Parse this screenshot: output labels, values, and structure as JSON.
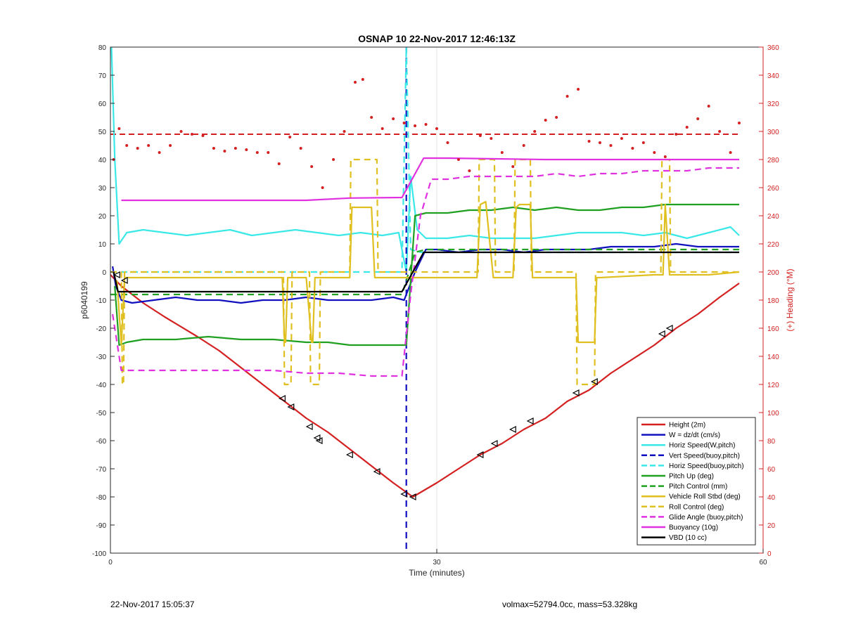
{
  "chart_data": {
    "type": "line",
    "title": "OSNAP 10 22-Nov-2017 12:46:13Z",
    "xlabel": "Time (minutes)",
    "ylabel": "p6040199",
    "y2label": "(+) Heading (°M)",
    "xlim": [
      0,
      60
    ],
    "ylim": [
      -100,
      80
    ],
    "y2lim": [
      0,
      360
    ],
    "xticks": [
      0,
      30,
      60
    ],
    "yticks": [
      -100,
      -90,
      -80,
      -70,
      -60,
      -50,
      -40,
      -30,
      -20,
      -10,
      0,
      10,
      20,
      30,
      40,
      50,
      60,
      70,
      80
    ],
    "y2ticks": [
      0,
      20,
      40,
      60,
      80,
      100,
      120,
      140,
      160,
      180,
      200,
      220,
      240,
      260,
      280,
      300,
      320,
      340,
      360
    ],
    "grid": true,
    "legend_position": "bottom-right",
    "colors": {
      "red": "#d42020",
      "blue": "#1010c0",
      "cyan": "#3ae8e8",
      "green": "#20a020",
      "yellow": "#e0c020",
      "magenta": "#e030e0",
      "black": "#000000",
      "right_axis": "#d42020"
    },
    "series": [
      {
        "name": "Height (2m)",
        "color": "red",
        "style": "solid",
        "x": [
          0,
          1,
          3,
          5,
          8,
          10,
          12,
          14,
          16,
          18,
          20,
          22,
          24,
          26,
          27.8,
          30,
          32,
          34,
          36,
          38,
          40,
          42,
          44,
          46,
          48,
          50,
          52,
          54,
          56,
          57.8
        ],
        "y": [
          -1,
          -5,
          -11,
          -16,
          -23,
          -28,
          -34,
          -40,
          -46,
          -52,
          -57,
          -63,
          -69,
          -75,
          -80,
          -75,
          -70,
          -65,
          -61,
          -56,
          -52,
          -46,
          -42,
          -36,
          -31,
          -26,
          -20,
          -15,
          -9,
          -4
        ]
      },
      {
        "name": "W = dz/dt (cm/s)",
        "color": "blue",
        "style": "solid",
        "x": [
          0.2,
          0.5,
          1,
          2,
          4,
          6,
          8,
          10,
          12,
          14,
          16,
          18,
          20,
          22,
          24,
          26,
          27,
          28,
          29,
          30,
          32,
          34,
          36,
          38,
          40,
          42,
          44,
          46,
          48,
          50,
          52,
          54,
          56,
          57.8
        ],
        "y": [
          2,
          -5,
          -10,
          -11,
          -10,
          -9,
          -10,
          -10,
          -11,
          -10,
          -10,
          -9,
          -10,
          -10,
          -10,
          -9,
          -10,
          0,
          8,
          8,
          7,
          8,
          8,
          7,
          8,
          8,
          8,
          9,
          9,
          9,
          10,
          9,
          9,
          9
        ]
      },
      {
        "name": "Horiz Speed(W,pitch)",
        "color": "cyan",
        "style": "solid",
        "x": [
          0.1,
          0.4,
          0.8,
          1.5,
          3,
          5,
          7,
          9,
          11,
          13,
          15,
          17,
          19,
          21,
          23,
          25,
          26.5,
          27.2,
          27.6,
          28.2,
          29,
          31,
          33,
          35,
          37,
          39,
          41,
          43,
          45,
          47,
          49,
          51,
          53,
          55,
          57,
          57.8
        ],
        "y": [
          80,
          40,
          10,
          14,
          15,
          14,
          13,
          14,
          15,
          13,
          14,
          15,
          14,
          13,
          14,
          13,
          14,
          0,
          34,
          15,
          12,
          12,
          13,
          12,
          12,
          12,
          13,
          14,
          14,
          14,
          13,
          14,
          12,
          14,
          16,
          13
        ]
      },
      {
        "name": "Vert Speed(buoy,pitch)",
        "color": "blue",
        "style": "dashed",
        "x": [
          27.2,
          27.2
        ],
        "y": [
          80,
          -100
        ]
      },
      {
        "name": "Horiz Speed(buoy,pitch)",
        "color": "cyan",
        "style": "dashed",
        "x": [
          0,
          26.8,
          27.2,
          27.6,
          28.5,
          57.8
        ],
        "y": [
          0,
          0,
          80,
          8,
          7,
          7
        ]
      },
      {
        "name": "Pitch Up (deg)",
        "color": "green",
        "style": "solid",
        "x": [
          0.4,
          0.8,
          1.5,
          3,
          6,
          9,
          12,
          15,
          18,
          20,
          22,
          24,
          26,
          27.2,
          28,
          29,
          31,
          33,
          35,
          37,
          39,
          41,
          43,
          45,
          47,
          49,
          51,
          53,
          55,
          57,
          57.8
        ],
        "y": [
          -5,
          -26,
          -25,
          -24,
          -24,
          -23,
          -24,
          -24,
          -25,
          -25,
          -26,
          -26,
          -26,
          -26,
          20,
          21,
          21,
          22,
          22,
          23,
          22,
          23,
          22,
          22,
          23,
          23,
          24,
          24,
          24,
          24,
          24
        ]
      },
      {
        "name": "Pitch Control (mm)",
        "color": "green",
        "style": "dashed",
        "x": [
          0,
          1,
          26.8,
          28,
          29,
          57.8
        ],
        "y": [
          -8,
          -8,
          -8,
          7,
          8,
          8
        ]
      },
      {
        "name": "Vehicle Roll Stbd (deg)",
        "color": "yellow",
        "style": "solid",
        "x": [
          0.6,
          1,
          1.3,
          4,
          8,
          12,
          15.8,
          16,
          16.1,
          16.3,
          16.6,
          18,
          18.5,
          18.6,
          18.8,
          19,
          20,
          22,
          22.2,
          22.4,
          24,
          24.3,
          24.5,
          26.5,
          27.3,
          28,
          30,
          33.7,
          34,
          34.5,
          35.2,
          35.5,
          37,
          37.3,
          37.6,
          38.6,
          38.8,
          39,
          42.8,
          43,
          43.3,
          44.5,
          44.7,
          45,
          50,
          50.8,
          51,
          51.4,
          55,
          57.8
        ],
        "y": [
          -3,
          -26,
          -2,
          -2,
          -2,
          -2,
          -2,
          -25,
          -25,
          -2,
          -2,
          -2,
          -25,
          -25,
          -2,
          -2,
          -2,
          -2,
          23,
          23,
          23,
          -2,
          -2,
          -2,
          -2,
          -2,
          -2,
          -2,
          24,
          25,
          -2,
          -2,
          -2,
          23,
          24,
          24,
          -2,
          -2,
          -2,
          -25,
          -25,
          -25,
          -2,
          -2,
          -1,
          -1,
          24,
          -1,
          -1,
          0
        ]
      },
      {
        "name": "Roll Control (deg)",
        "color": "yellow",
        "style": "dashed",
        "x": [
          0,
          1,
          1.1,
          1.2,
          1.3,
          15.9,
          16,
          16.6,
          16.7,
          18.3,
          18.4,
          19.2,
          19.3,
          22,
          22.1,
          24.5,
          24.6,
          33.8,
          33.9,
          35.3,
          35.4,
          37.1,
          37.2,
          38.6,
          38.7,
          42.8,
          42.9,
          44.5,
          44.6,
          50.6,
          50.7,
          51.4,
          51.5,
          57.8
        ],
        "y": [
          0,
          0,
          -40,
          -40,
          0,
          0,
          -40,
          -40,
          0,
          0,
          -40,
          -40,
          0,
          0,
          40,
          40,
          0,
          0,
          40,
          40,
          0,
          0,
          40,
          40,
          0,
          0,
          -40,
          -40,
          0,
          0,
          40,
          40,
          0,
          0
        ]
      },
      {
        "name": "Glide Angle (buoy,pitch)",
        "color": "magenta",
        "style": "dashed",
        "x": [
          0.2,
          1,
          3,
          6,
          9,
          12,
          15,
          18,
          21,
          24,
          26.8,
          27.6,
          28.5,
          29.5,
          31,
          33,
          35,
          37,
          39,
          41,
          43,
          45,
          47,
          49,
          51,
          53,
          55,
          57,
          57.8
        ],
        "y": [
          -15,
          -35,
          -35,
          -35,
          -35,
          -35,
          -35,
          -36,
          -36,
          -37,
          -37,
          -8,
          20,
          33,
          33,
          34,
          34,
          34,
          34,
          35,
          34,
          35,
          35,
          36,
          36,
          36,
          37,
          37,
          37
        ]
      },
      {
        "name": "Buoyancy (10g)",
        "color": "magenta",
        "style": "solid",
        "x": [
          1,
          10,
          18,
          22,
          26.8,
          28.8,
          31,
          40,
          50,
          57.8
        ],
        "y": [
          25.5,
          25.5,
          25.5,
          26.3,
          26.5,
          40.5,
          40.5,
          40,
          40,
          40
        ]
      },
      {
        "name": "VBD (10 cc)",
        "color": "black",
        "style": "solid",
        "x": [
          0.3,
          0.7,
          5,
          15,
          26.8,
          28.8,
          31,
          40,
          50,
          57.8
        ],
        "y": [
          0,
          -7,
          -7,
          -7,
          -7,
          7,
          7,
          7,
          7,
          7
        ]
      }
    ],
    "heading_target_deg": 298,
    "heading_deg": {
      "x": [
        0.3,
        0.8,
        1.5,
        2.5,
        3.5,
        4.5,
        5.5,
        6.5,
        7.5,
        8.5,
        9.5,
        10.5,
        11.5,
        12.5,
        13.5,
        14.5,
        15.5,
        16.5,
        17.5,
        18.5,
        19.5,
        20.5,
        21.5,
        22.5,
        23.2,
        24,
        25,
        26,
        27,
        28,
        29,
        30,
        31,
        32,
        33,
        34,
        35,
        36,
        37,
        38,
        39,
        40,
        41,
        42,
        43,
        44,
        45,
        46,
        47,
        48,
        49,
        50,
        51,
        52,
        53,
        54,
        55,
        56,
        57,
        57.8
      ],
      "y": [
        280,
        302,
        290,
        288,
        290,
        285,
        290,
        300,
        298,
        297,
        288,
        286,
        288,
        287,
        285,
        285,
        277,
        296,
        288,
        275,
        260,
        280,
        300,
        335,
        337,
        310,
        302,
        309,
        306,
        304,
        305,
        302,
        292,
        280,
        272,
        297,
        295,
        285,
        275,
        290,
        300,
        308,
        310,
        325,
        330,
        293,
        292,
        290,
        295,
        288,
        292,
        285,
        282,
        298,
        303,
        309,
        318,
        300,
        285,
        306
      ]
    },
    "height_markers": {
      "x": [
        0.6,
        1.3,
        15.8,
        16.6,
        18.3,
        19,
        19.2,
        22,
        24.5,
        27,
        27.8,
        34,
        35.3,
        37,
        38.6,
        42.8,
        44.5,
        50.7,
        51.4
      ],
      "y": [
        -1,
        -3,
        -45,
        -48,
        -55,
        -59,
        -60,
        -65,
        -71,
        -79,
        -80,
        -65,
        -61,
        -56,
        -53,
        -43,
        -39,
        -22,
        -20
      ]
    }
  },
  "footer": {
    "timestamp": "22-Nov-2017 15:05:37",
    "info": "volmax=52794.0cc, mass=53.328kg"
  }
}
